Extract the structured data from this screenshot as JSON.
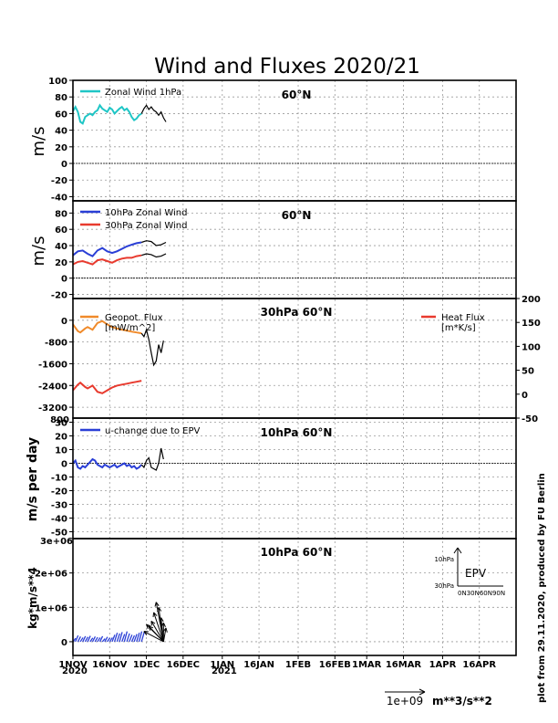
{
  "title": "Wind and Fluxes 2020/21",
  "credit": "plot from 29.11.2020, produced by FU Berlin",
  "colors": {
    "zonal1": "#1fc6c6",
    "blue": "#2a3fd6",
    "red": "#e83a2e",
    "orange": "#f08a2a",
    "black": "#000000",
    "grid": "#9a9a9a"
  },
  "time_axis": {
    "tick_labels": [
      "1NOV",
      "16NOV",
      "1DEC",
      "16DEC",
      "1JAN",
      "16JAN",
      "1FEB",
      "16FEB",
      "1MAR",
      "16MAR",
      "1APR",
      "16APR"
    ],
    "tick_days": [
      0,
      15,
      30,
      45,
      61,
      76,
      92,
      107,
      120,
      135,
      151,
      166
    ],
    "year_labels": [
      "2020",
      "2021"
    ],
    "range_days": [
      0,
      181
    ]
  },
  "panels": {
    "p1": {
      "ylabel": "m/s",
      "location": "60°N",
      "legend": [
        "Zonal Wind 1hPa"
      ]
    },
    "p2": {
      "ylabel": "m/s",
      "location": "60°N",
      "legend": [
        "10hPa Zonal Wind",
        "30hPa Zonal Wind"
      ]
    },
    "p3": {
      "location": "30hPa 60°N",
      "legend_left": [
        "Geopot. Flux",
        "[mW/m^2]"
      ],
      "legend_right": [
        "Heat Flux",
        "[m*K/s]"
      ]
    },
    "p4": {
      "ylabel": "m/s per day",
      "location": "10hPa 60°N",
      "legend": [
        "u-change due to EPV"
      ],
      "top_left_label": "800"
    },
    "p5": {
      "ylabel": "kg*m/s**4",
      "location": "10hPa 60°N",
      "top_left_label": "3e+06",
      "inset": {
        "label": "EPV",
        "y_ticks": [
          "10hPa",
          "30hPa"
        ],
        "x_ticks": "0N30N60N90N"
      }
    },
    "scale": {
      "label": "1e+09",
      "unit": "m**3/s**2"
    }
  },
  "chart_data": [
    {
      "type": "line",
      "id": "p1",
      "title": "60°N",
      "xlabel": "",
      "ylabel": "m/s",
      "ylim": [
        -45,
        100
      ],
      "yticks": [
        -40,
        -20,
        0,
        20,
        40,
        60,
        80,
        100
      ],
      "ytick_labels": [
        "-40",
        "-20",
        "0",
        "20",
        "40",
        "60",
        "80",
        "100"
      ],
      "series": [
        {
          "name": "Zonal Wind 1hPa",
          "color": "cyan",
          "x": [
            0,
            1,
            2,
            3,
            4,
            5,
            6,
            7,
            8,
            9,
            10,
            11,
            12,
            13,
            14,
            15,
            16,
            17,
            18,
            19,
            20,
            21,
            22,
            23,
            24,
            25,
            26,
            27,
            28
          ],
          "y": [
            63,
            68,
            62,
            50,
            48,
            56,
            58,
            60,
            58,
            62,
            64,
            70,
            66,
            64,
            62,
            67,
            65,
            60,
            63,
            66,
            68,
            64,
            66,
            62,
            56,
            52,
            54,
            58,
            60
          ]
        },
        {
          "name": "Zonal Wind 1hPa forecast",
          "color": "black",
          "x": [
            28,
            29,
            30,
            31,
            32,
            33,
            34,
            35,
            36,
            37,
            38
          ],
          "y": [
            60,
            66,
            70,
            65,
            68,
            64,
            62,
            58,
            62,
            55,
            50
          ]
        }
      ]
    },
    {
      "type": "line",
      "id": "p2",
      "title": "60°N",
      "xlabel": "",
      "ylabel": "m/s",
      "ylim": [
        -25,
        95
      ],
      "yticks": [
        -20,
        0,
        20,
        40,
        60,
        80
      ],
      "ytick_labels": [
        "-20",
        "0",
        "20",
        "40",
        "60",
        "80"
      ],
      "series": [
        {
          "name": "10hPa Zonal Wind",
          "color": "blue",
          "x": [
            0,
            2,
            4,
            6,
            8,
            10,
            12,
            14,
            16,
            18,
            20,
            22,
            24,
            26,
            28
          ],
          "y": [
            28,
            33,
            34,
            30,
            27,
            34,
            37,
            33,
            31,
            33,
            36,
            39,
            41,
            43,
            44
          ]
        },
        {
          "name": "30hPa Zonal Wind",
          "color": "red",
          "x": [
            0,
            2,
            4,
            6,
            8,
            10,
            12,
            14,
            16,
            18,
            20,
            22,
            24,
            26,
            28
          ],
          "y": [
            17,
            20,
            21,
            19,
            17,
            22,
            23,
            21,
            19,
            22,
            24,
            25,
            25,
            27,
            28
          ]
        },
        {
          "name": "10hPa forecast",
          "color": "black",
          "x": [
            28,
            30,
            32,
            34,
            36,
            38
          ],
          "y": [
            44,
            46,
            45,
            40,
            41,
            44
          ]
        },
        {
          "name": "30hPa forecast",
          "color": "black",
          "x": [
            28,
            30,
            32,
            34,
            36,
            38
          ],
          "y": [
            28,
            30,
            29,
            26,
            27,
            30
          ]
        }
      ]
    },
    {
      "type": "line",
      "id": "p3",
      "title": "30hPa 60°N",
      "xlabel": "",
      "ylabel": "",
      "ylim_left": [
        -3600,
        800
      ],
      "ylim_right": [
        -50,
        200
      ],
      "yticks_left": [
        -3200,
        -2400,
        -1600,
        -800,
        0
      ],
      "ytick_labels_left": [
        "-3200",
        "-2400",
        "-1600",
        "-800",
        "0"
      ],
      "yticks_right": [
        -50,
        0,
        50,
        100,
        150,
        200
      ],
      "ytick_labels_right": [
        "-50",
        "0",
        "50",
        "100",
        "150",
        "200"
      ],
      "series": [
        {
          "name": "Geopot. Flux",
          "color": "orange",
          "axis": "left",
          "x": [
            0,
            2,
            3,
            5,
            6,
            8,
            10,
            12,
            14,
            16,
            18,
            20,
            22,
            24,
            26,
            28
          ],
          "y": [
            -150,
            -400,
            -450,
            -300,
            -250,
            -350,
            -100,
            -30,
            -150,
            -250,
            -300,
            -350,
            -380,
            -420,
            -450,
            -480
          ]
        },
        {
          "name": "Heat Flux",
          "color": "red",
          "axis": "right",
          "x": [
            0,
            2,
            3,
            5,
            6,
            8,
            10,
            12,
            14,
            16,
            18,
            20,
            22,
            24,
            26,
            28
          ],
          "y": [
            8,
            20,
            24,
            15,
            12,
            18,
            5,
            2,
            8,
            14,
            18,
            20,
            22,
            24,
            26,
            28
          ]
        },
        {
          "name": "Forecast",
          "color": "black",
          "axis": "left",
          "x": [
            28,
            29,
            30,
            31,
            32,
            33,
            34,
            35,
            36,
            37
          ],
          "y": [
            -480,
            -600,
            -350,
            -700,
            -1200,
            -1650,
            -1500,
            -900,
            -1200,
            -750
          ]
        }
      ]
    },
    {
      "type": "line",
      "id": "p4",
      "title": "10hPa 60°N",
      "xlabel": "",
      "ylabel": "m/s per day",
      "ylim": [
        -55,
        33
      ],
      "yticks": [
        -50,
        -40,
        -30,
        -20,
        -10,
        0,
        10,
        20,
        30
      ],
      "ytick_labels": [
        "-50",
        "-40",
        "-30",
        "-20",
        "-10",
        "0",
        "10",
        "20",
        "30"
      ],
      "series": [
        {
          "name": "u-change due to EPV",
          "color": "blue",
          "x": [
            0,
            1,
            2,
            3,
            4,
            5,
            6,
            7,
            8,
            9,
            10,
            11,
            12,
            13,
            14,
            15,
            16,
            17,
            18,
            19,
            20,
            21,
            22,
            23,
            24,
            25,
            26,
            27,
            28
          ],
          "y": [
            0,
            2,
            -3,
            -4,
            -2,
            -3,
            -1,
            1,
            3,
            2,
            -1,
            -2,
            -3,
            -1,
            -2,
            -3,
            -2,
            -1,
            -3,
            -2,
            -1,
            0,
            -2,
            -1,
            -3,
            -2,
            -4,
            -3,
            -1
          ]
        },
        {
          "name": "Forecast",
          "color": "black",
          "x": [
            28,
            29,
            30,
            31,
            32,
            33,
            34,
            35,
            36,
            37
          ],
          "y": [
            -1,
            -3,
            2,
            4,
            -3,
            -4,
            -5,
            0,
            11,
            3
          ]
        }
      ]
    },
    {
      "type": "line",
      "id": "p5",
      "title": "10hPa 60°N",
      "xlabel": "",
      "ylabel": "kg*m/s**4",
      "ylim": [
        -400000,
        3000000
      ],
      "yticks": [
        0,
        1000000,
        2000000
      ],
      "ytick_labels": [
        "0",
        "1e+06",
        "2e+06"
      ],
      "series": [
        {
          "name": "EPV divergence",
          "color": "blue",
          "x": [
            0,
            1,
            2,
            3,
            4,
            5,
            6,
            7,
            8,
            9,
            10,
            11,
            12,
            13,
            14,
            15,
            16,
            17,
            18,
            19,
            20,
            21,
            22,
            23,
            24,
            25,
            26,
            27,
            28
          ],
          "y": [
            100000,
            180000,
            150000,
            120000,
            160000,
            140000,
            170000,
            110000,
            150000,
            130000,
            120000,
            160000,
            90000,
            140000,
            110000,
            120000,
            200000,
            260000,
            240000,
            280000,
            220000,
            300000,
            240000,
            200000,
            180000,
            220000,
            260000,
            300000,
            280000
          ]
        },
        {
          "name": "EPV vectors",
          "color": "black",
          "x": [
            29,
            30,
            31,
            32,
            33,
            34,
            35,
            36,
            37,
            38
          ],
          "y": [
            300000,
            500000,
            450000,
            600000,
            850000,
            1150000,
            1000000,
            700000,
            550000,
            400000
          ]
        }
      ]
    }
  ]
}
